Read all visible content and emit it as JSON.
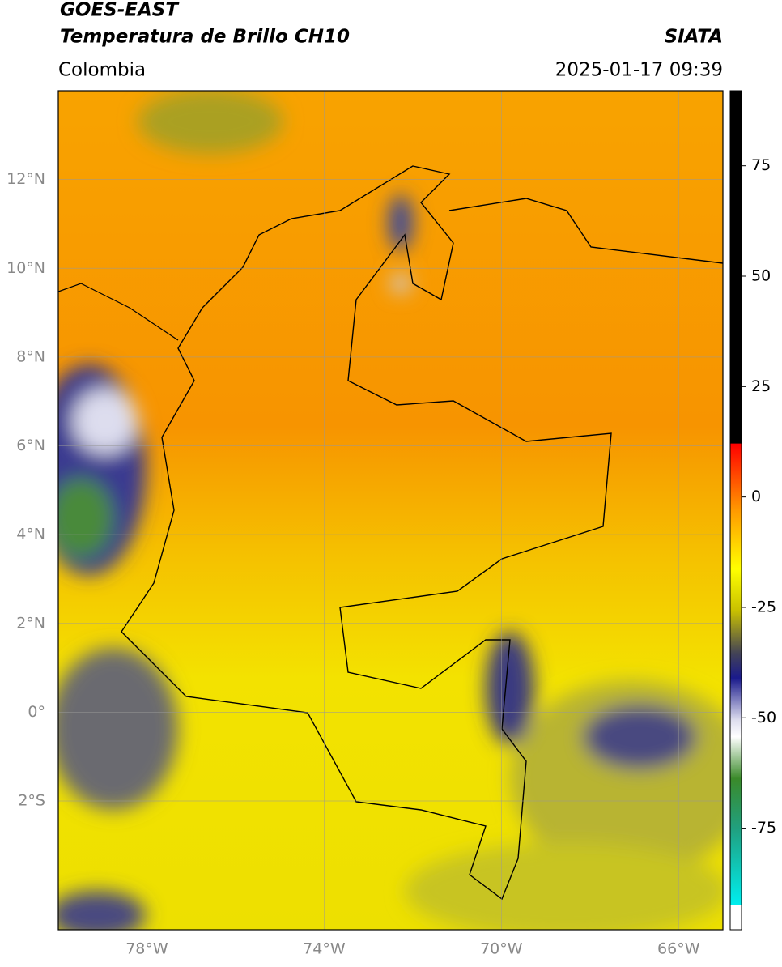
{
  "header": {
    "title": "GOES-EAST",
    "subtitle": "Temperatura de Brillo CH10",
    "region": "Colombia",
    "source": "SIATA",
    "datetime": "2025-01-17 09:39"
  },
  "map": {
    "lonlim": [
      -80,
      -65
    ],
    "latlim": [
      -4.9,
      14
    ],
    "lat_ticks": [
      {
        "value": 12,
        "label": "12°N"
      },
      {
        "value": 10,
        "label": "10°N"
      },
      {
        "value": 8,
        "label": "8°N"
      },
      {
        "value": 6,
        "label": "6°N"
      },
      {
        "value": 4,
        "label": "4°N"
      },
      {
        "value": 2,
        "label": "2°N"
      },
      {
        "value": 0,
        "label": "0°"
      },
      {
        "value": -2,
        "label": "2°S"
      }
    ],
    "lon_ticks": [
      {
        "value": -78,
        "label": "78°W"
      },
      {
        "value": -74,
        "label": "74°W"
      },
      {
        "value": -70,
        "label": "70°W"
      },
      {
        "value": -66,
        "label": "66°W"
      }
    ]
  },
  "colorbar": {
    "lim": [
      -98,
      92
    ],
    "ticks": [
      75,
      50,
      25,
      0,
      -25,
      -50,
      -75
    ]
  }
}
